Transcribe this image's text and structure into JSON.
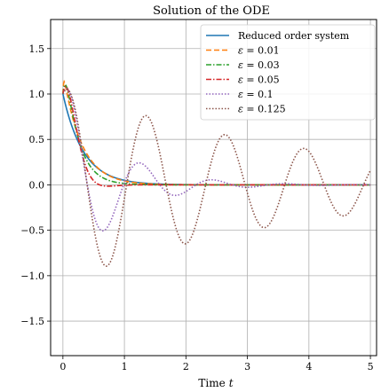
{
  "chart_data": {
    "type": "line",
    "title": "Solution of the ODE",
    "xlabel": "Time",
    "xlabel_var": "t",
    "ylabel": "",
    "xlim": [
      -0.2,
      5.1
    ],
    "ylim": [
      -1.88,
      1.82
    ],
    "xticks": [
      0,
      1,
      2,
      3,
      4,
      5
    ],
    "yticks": [
      1.5,
      1.0,
      0.5,
      0.0,
      -0.5,
      -1.0,
      -1.5
    ],
    "xtick_labels": [
      "0",
      "1",
      "2",
      "3",
      "4",
      "5"
    ],
    "ytick_labels": [
      "1.5",
      "1.0",
      "0.5",
      "0.0",
      "−0.5",
      "−1.0",
      "−1.5"
    ],
    "grid": true,
    "legend_position": "top-right",
    "series": [
      {
        "name": "Reduced order system",
        "legend_prefix": "",
        "legend_value": "",
        "color": "#1f77b4",
        "dash": "solid",
        "eps": 0
      },
      {
        "name": "ε = 0.01",
        "legend_prefix": "ε",
        "legend_value": " = 0.01",
        "color": "#ff7f0e",
        "dash": "dashed",
        "eps": 0.01
      },
      {
        "name": "ε = 0.03",
        "legend_prefix": "ε",
        "legend_value": " = 0.03",
        "color": "#2ca02c",
        "dash": "dashdot",
        "eps": 0.03
      },
      {
        "name": "ε = 0.05",
        "legend_prefix": "ε",
        "legend_value": " = 0.05",
        "color": "#d62728",
        "dash": "dashdot",
        "eps": 0.05
      },
      {
        "name": "ε = 0.1",
        "legend_prefix": "ε",
        "legend_value": " = 0.1",
        "color": "#9467bd",
        "dash": "dotted",
        "eps": 0.1
      },
      {
        "name": "ε = 0.125",
        "legend_prefix": "ε",
        "legend_value": " = 0.125",
        "color": "#8c564b",
        "dash": "dotted",
        "eps": 0.125
      }
    ]
  }
}
